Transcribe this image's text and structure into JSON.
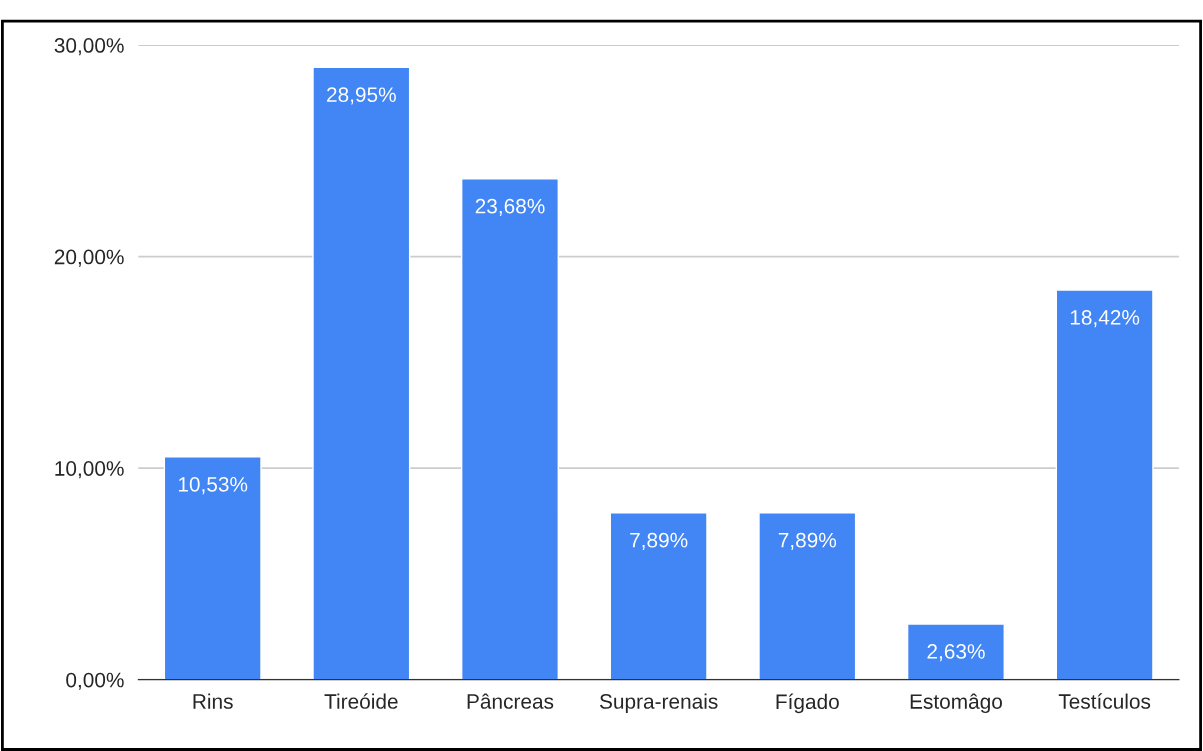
{
  "chart_data": {
    "type": "bar",
    "categories": [
      "Rins",
      "Tireóide",
      "Pâncreas",
      "Supra-renais",
      "Fígado",
      "Estomâgo",
      "Testículos"
    ],
    "values": [
      10.53,
      28.95,
      23.68,
      7.89,
      7.89,
      2.63,
      18.42
    ],
    "value_labels": [
      "10,53%",
      "28,95%",
      "23,68%",
      "7,89%",
      "7,89%",
      "2,63%",
      "18,42%"
    ],
    "color": "#4285f4",
    "ylim": [
      0,
      30
    ],
    "yticks": [
      {
        "value": 0,
        "label": "0,00%"
      },
      {
        "value": 10,
        "label": "10,00%"
      },
      {
        "value": 20,
        "label": "20,00%"
      },
      {
        "value": 30,
        "label": "30,00%"
      }
    ],
    "grid": "y"
  }
}
